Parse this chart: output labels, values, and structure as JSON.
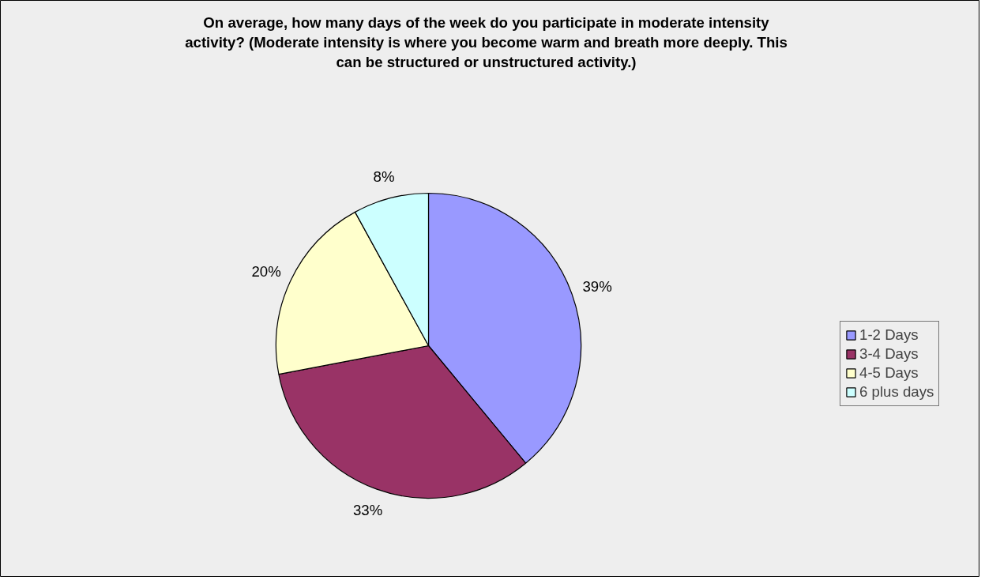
{
  "chart_data": {
    "type": "pie",
    "title": "On average, how many days of the week do you participate in moderate intensity activity? (Moderate intensity is where you become warm and breath more deeply. This can be structured or unstructured activity.)",
    "categories": [
      "1-2 Days",
      "3-4 Days",
      "4-5 Days",
      "6 plus days"
    ],
    "values": [
      39,
      33,
      20,
      8
    ],
    "colors": [
      "#9999ff",
      "#993366",
      "#ffffcc",
      "#ccffff"
    ],
    "value_labels": [
      "39%",
      "33%",
      "20%",
      "8%"
    ],
    "legend": "right"
  }
}
